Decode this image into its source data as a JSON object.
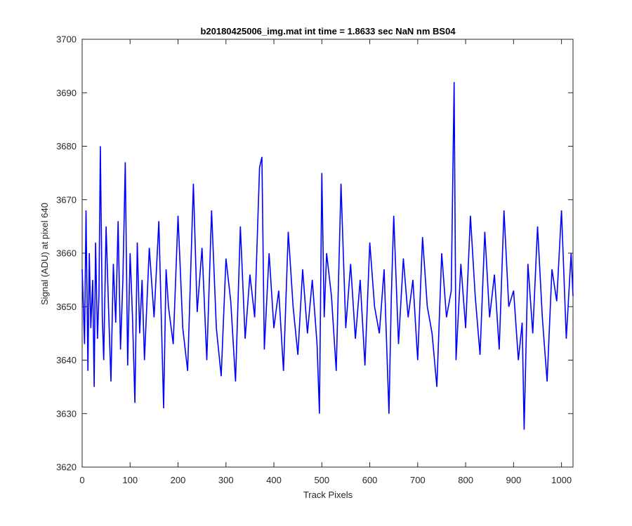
{
  "chart_data": {
    "type": "line",
    "title": "b20180425006_img.mat int time = 1.8633 sec  NaN nm BS04",
    "xlabel": "Track Pixels",
    "ylabel": "Signal (ADU) at pixel 640",
    "xlim": [
      0,
      1024
    ],
    "ylim": [
      3620,
      3700
    ],
    "xticks": [
      0,
      100,
      200,
      300,
      400,
      500,
      600,
      700,
      800,
      900,
      1000
    ],
    "yticks": [
      3620,
      3630,
      3640,
      3650,
      3660,
      3670,
      3680,
      3690,
      3700
    ],
    "grid": false,
    "line_color": "#0000ff",
    "series": [
      {
        "x": [
          0,
          5,
          8,
          12,
          15,
          18,
          22,
          25,
          28,
          32,
          35,
          38,
          42,
          45,
          50,
          55,
          60,
          65,
          70,
          75,
          80,
          85,
          90,
          95,
          100,
          105,
          110,
          115,
          120,
          125,
          130,
          140,
          150,
          160,
          170,
          175,
          180,
          190,
          200,
          210,
          220,
          232,
          240,
          250,
          260,
          270,
          280,
          290,
          300,
          310,
          320,
          330,
          340,
          350,
          360,
          370,
          375,
          380,
          390,
          400,
          410,
          420,
          430,
          440,
          450,
          460,
          470,
          480,
          490,
          495,
          500,
          505,
          510,
          520,
          530,
          540,
          550,
          560,
          570,
          580,
          590,
          600,
          610,
          620,
          630,
          640,
          645,
          650,
          660,
          670,
          680,
          690,
          700,
          710,
          720,
          730,
          740,
          750,
          760,
          770,
          776,
          780,
          790,
          800,
          810,
          820,
          830,
          840,
          850,
          860,
          870,
          880,
          890,
          900,
          910,
          918,
          922,
          930,
          940,
          950,
          960,
          970,
          980,
          990,
          1000,
          1010,
          1020,
          1024
        ],
        "y": [
          3657,
          3643,
          3668,
          3638,
          3660,
          3646,
          3655,
          3635,
          3662,
          3644,
          3652,
          3680,
          3648,
          3640,
          3665,
          3650,
          3636,
          3658,
          3647,
          3666,
          3642,
          3655,
          3677,
          3639,
          3660,
          3648,
          3632,
          3662,
          3645,
          3655,
          3640,
          3661,
          3648,
          3666,
          3631,
          3657,
          3650,
          3643,
          3667,
          3646,
          3638,
          3673,
          3649,
          3661,
          3640,
          3668,
          3646,
          3637,
          3659,
          3651,
          3636,
          3665,
          3644,
          3656,
          3648,
          3676,
          3678,
          3642,
          3660,
          3646,
          3653,
          3638,
          3664,
          3650,
          3641,
          3657,
          3645,
          3655,
          3643,
          3630,
          3675,
          3648,
          3660,
          3652,
          3638,
          3673,
          3646,
          3658,
          3644,
          3655,
          3639,
          3662,
          3650,
          3645,
          3657,
          3630,
          3652,
          3667,
          3643,
          3659,
          3648,
          3655,
          3640,
          3663,
          3650,
          3645,
          3635,
          3660,
          3648,
          3653,
          3692,
          3640,
          3658,
          3646,
          3667,
          3652,
          3641,
          3664,
          3648,
          3656,
          3642,
          3668,
          3650,
          3653,
          3640,
          3647,
          3627,
          3658,
          3645,
          3665,
          3648,
          3636,
          3657,
          3651,
          3668,
          3644,
          3660,
          3652
        ]
      }
    ]
  }
}
